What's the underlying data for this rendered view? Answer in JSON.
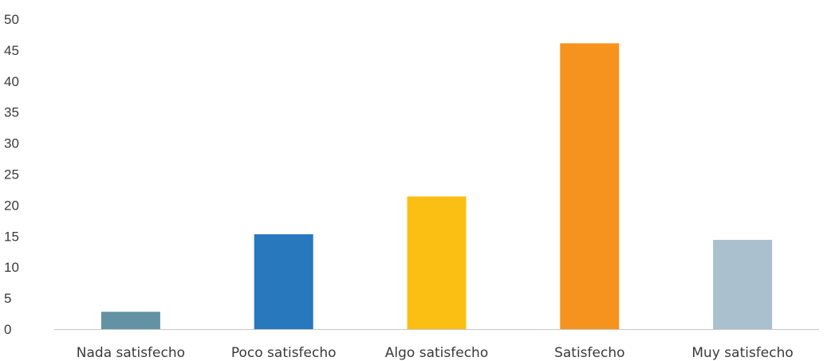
{
  "chart_data": {
    "type": "bar",
    "title": "",
    "xlabel": "",
    "ylabel": "",
    "categories": [
      "Nada satisfecho",
      "Poco satisfecho",
      "Algo satisfecho",
      "Satisfecho",
      "Muy satisfecho"
    ],
    "values": [
      2.8,
      15.3,
      21.4,
      46.1,
      14.4
    ],
    "colors": [
      "#6492a5",
      "#2878be",
      "#fbbf14",
      "#f6931f",
      "#aac0ce"
    ],
    "ylim": [
      0,
      50
    ],
    "yticks": [
      "0",
      "5",
      "10",
      "15",
      "20",
      "25",
      "30",
      "35",
      "40",
      "45",
      "50"
    ],
    "grid": false,
    "legend": "none",
    "axis_color": "#c8c8c8"
  }
}
